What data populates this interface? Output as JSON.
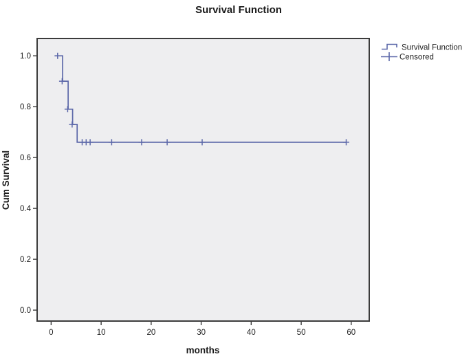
{
  "colors": {
    "curve": "#5c68a9",
    "plot_background": "#eeeef0",
    "frame": "#3b3b3b",
    "text": "#1a1a1a",
    "page_background": "#ffffff"
  },
  "chart_data": {
    "type": "line",
    "subtype": "kaplan_meier_step",
    "title": "Survival Function",
    "xlabel": "months",
    "ylabel": "Cum Survival",
    "xticks": [
      0,
      10,
      20,
      30,
      40,
      50,
      60
    ],
    "yticks": [
      0.0,
      0.2,
      0.4,
      0.6,
      0.8,
      1.0
    ],
    "xlim": [
      -2.8,
      63.6
    ],
    "ylim": [
      -0.043,
      1.068
    ],
    "grid": false,
    "legend": {
      "position": "top-right-outside",
      "entries": [
        {
          "label": "Survival Function",
          "marker": "step-line"
        },
        {
          "label": "Censored",
          "marker": "plus"
        }
      ]
    },
    "series": [
      {
        "name": "Survival Function",
        "draw": "step",
        "points": [
          [
            0.75,
            1.0
          ],
          [
            2.3,
            1.0
          ],
          [
            2.3,
            0.9
          ],
          [
            3.4,
            0.9
          ],
          [
            3.4,
            0.79
          ],
          [
            4.3,
            0.79
          ],
          [
            4.3,
            0.73
          ],
          [
            5.2,
            0.73
          ],
          [
            5.2,
            0.66
          ],
          [
            59.0,
            0.66
          ]
        ]
      },
      {
        "name": "Censored",
        "draw": "plus-markers",
        "points": [
          [
            1.3,
            1.0
          ],
          [
            2.2,
            0.9
          ],
          [
            3.3,
            0.79
          ],
          [
            4.2,
            0.73
          ],
          [
            6.2,
            0.66
          ],
          [
            7.0,
            0.66
          ],
          [
            7.8,
            0.66
          ],
          [
            12.1,
            0.66
          ],
          [
            18.1,
            0.66
          ],
          [
            23.2,
            0.66
          ],
          [
            30.2,
            0.66
          ],
          [
            59.0,
            0.66
          ]
        ]
      }
    ]
  }
}
